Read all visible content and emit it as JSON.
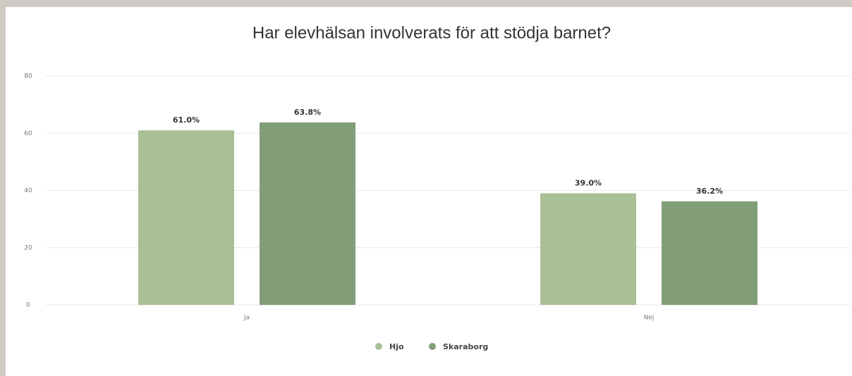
{
  "chart_data": {
    "type": "bar",
    "title": "Har elevhälsan involverats för att stödja barnet?",
    "categories": [
      "Ja",
      "Nej"
    ],
    "series": [
      {
        "name": "Hjo",
        "color": "#a9bf96",
        "values": [
          61.0,
          39.0
        ],
        "value_labels": [
          "61.0%",
          "39.0%"
        ]
      },
      {
        "name": "Skaraborg",
        "color": "#829e78",
        "values": [
          63.8,
          36.2
        ],
        "value_labels": [
          "63.8%",
          "36.2%"
        ]
      }
    ],
    "ylim": [
      0,
      80
    ],
    "yticks": [
      0,
      20,
      40,
      60,
      80
    ],
    "grid": true
  }
}
